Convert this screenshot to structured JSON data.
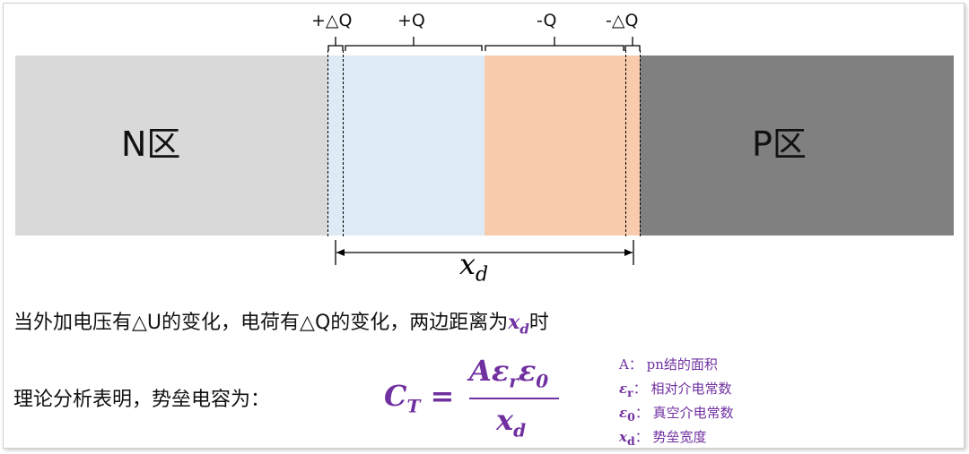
{
  "regions": {
    "n_label": "N区",
    "p_label": "P区"
  },
  "charges": {
    "plus_delta_q": "+△Q",
    "plus_q": "+Q",
    "minus_q": "-Q",
    "minus_delta_q": "-△Q"
  },
  "width_label": {
    "base": "x",
    "sub": "d"
  },
  "colors": {
    "n": "#d9d9d9",
    "plus": "#deebf7",
    "minus": "#f8cbad",
    "p": "#808080",
    "formula": "#7030a0"
  },
  "text": {
    "line1": "当外加电压有△U的变化，电荷有△Q的变化，两边距离为",
    "line1_var": "x",
    "line1_sub": "d",
    "line1_end": "时",
    "line2": "理论分析表明，势垒电容为："
  },
  "formula": {
    "lhs": "C",
    "lhs_sub": "T",
    "eq": "=",
    "num": "Aε",
    "num_sub1": "r",
    "num2": "ε",
    "num_sub2": "0",
    "den": "x",
    "den_sub": "d"
  },
  "legend": [
    {
      "sym": "A",
      "sub": "",
      "desc": "：  pn结的面积"
    },
    {
      "sym": "ε",
      "sub": "r",
      "desc": "：  相对介电常数"
    },
    {
      "sym": "ε",
      "sub": "0",
      "desc": "：  真空介电常数"
    },
    {
      "sym": "x",
      "sub": "d",
      "desc": "：  势垒宽度"
    }
  ]
}
